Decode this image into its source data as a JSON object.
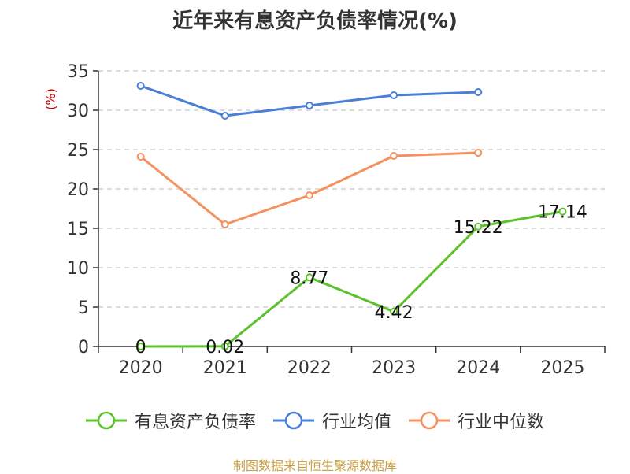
{
  "chart_data": {
    "type": "line",
    "title": "近年来有息资产负债率情况(%)",
    "ylabel": "(%)",
    "xlabel": "",
    "categories": [
      "2020",
      "2021",
      "2022",
      "2023",
      "2024",
      "2025"
    ],
    "ylim": [
      0,
      35
    ],
    "yticks": [
      0,
      5,
      10,
      15,
      20,
      25,
      30,
      35
    ],
    "grid": true,
    "legend_position": "bottom",
    "series": [
      {
        "name": "有息资产负债率",
        "color": "#5cc22c",
        "values": [
          0,
          0.02,
          8.77,
          4.42,
          15.22,
          17.14
        ],
        "labels": [
          "0",
          "0.02",
          "8.77",
          "4.42",
          "15.22",
          "17.14"
        ]
      },
      {
        "name": "行业均值",
        "color": "#4a7fd9",
        "values": [
          33.1,
          29.3,
          30.6,
          31.9,
          32.3,
          null
        ]
      },
      {
        "name": "行业中位数",
        "color": "#f4915e",
        "values": [
          24.1,
          15.5,
          19.2,
          24.2,
          24.6,
          null
        ]
      }
    ]
  },
  "source": "制图数据来自恒生聚源数据库"
}
